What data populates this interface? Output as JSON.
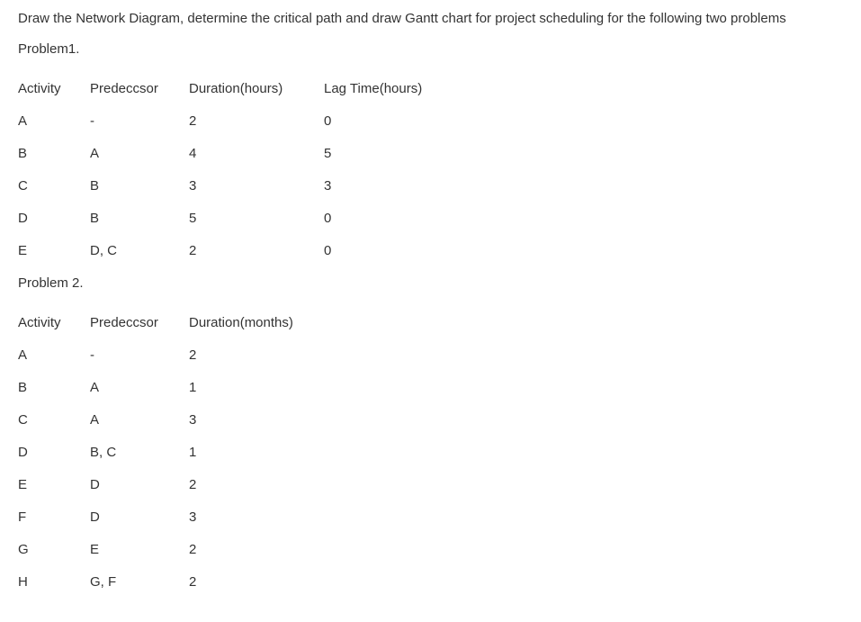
{
  "intro": "Draw the Network Diagram, determine the critical path and draw Gantt chart for project scheduling  for the following two problems",
  "problem1": {
    "title": "Problem1.",
    "headers": {
      "activity": "Activity",
      "predecessor": "Predeccsor",
      "duration": "Duration(hours)",
      "lag": "Lag Time(hours)"
    },
    "rows": [
      {
        "activity": "A",
        "predecessor": "-",
        "duration": "2",
        "lag": "0"
      },
      {
        "activity": "B",
        "predecessor": "A",
        "duration": "4",
        "lag": "5"
      },
      {
        "activity": "C",
        "predecessor": "B",
        "duration": "3",
        "lag": "3"
      },
      {
        "activity": "D",
        "predecessor": "B",
        "duration": "5",
        "lag": "0"
      },
      {
        "activity": "E",
        "predecessor": "D, C",
        "duration": "2",
        "lag": "0"
      }
    ]
  },
  "problem2": {
    "title": "Problem 2.",
    "headers": {
      "activity": "Activity",
      "predecessor": "Predeccsor",
      "duration": "Duration(months)"
    },
    "rows": [
      {
        "activity": "A",
        "predecessor": "-",
        "duration": "2"
      },
      {
        "activity": "B",
        "predecessor": "A",
        "duration": "1"
      },
      {
        "activity": "C",
        "predecessor": "A",
        "duration": "3"
      },
      {
        "activity": "D",
        "predecessor": "B, C",
        "duration": "1"
      },
      {
        "activity": "E",
        "predecessor": "D",
        "duration": "2"
      },
      {
        "activity": "F",
        "predecessor": "D",
        "duration": "3"
      },
      {
        "activity": "G",
        "predecessor": "E",
        "duration": "2"
      },
      {
        "activity": "H",
        "predecessor": "G, F",
        "duration": "2"
      }
    ]
  }
}
